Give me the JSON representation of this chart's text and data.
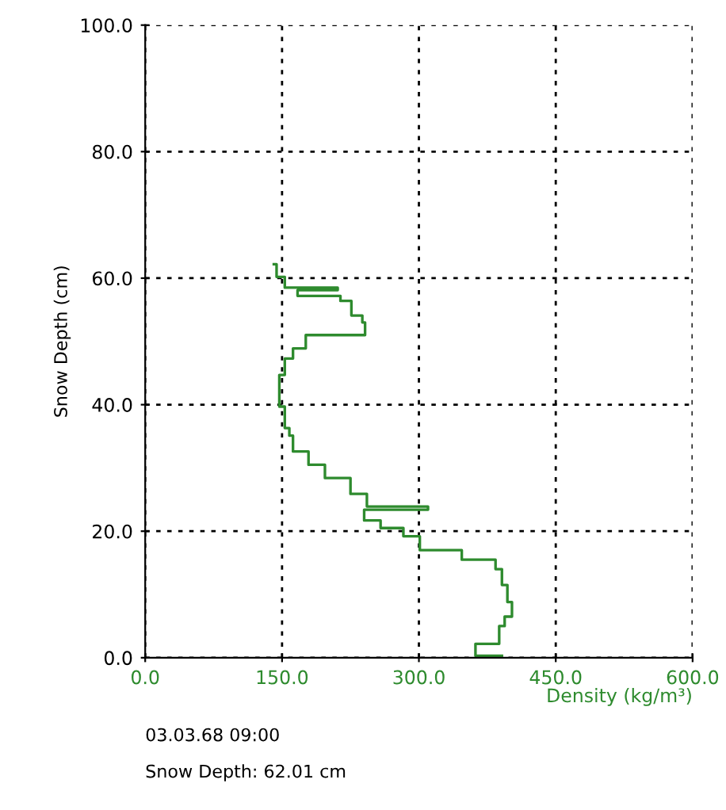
{
  "chart_data": {
    "type": "line",
    "xlabel": "Density (kg/m³)",
    "ylabel": "Snow Depth (cm)",
    "xlim": [
      0,
      600
    ],
    "xticks": [
      {
        "value": 0,
        "label": "0.0"
      },
      {
        "value": 150,
        "label": "150.0"
      },
      {
        "value": 300,
        "label": "300.0"
      },
      {
        "value": 450,
        "label": "450.0"
      },
      {
        "value": 600,
        "label": "600.0"
      }
    ],
    "ylim": [
      0,
      100
    ],
    "yticks": [
      {
        "value": 0,
        "label": "0.0"
      },
      {
        "value": 20,
        "label": "20.0"
      },
      {
        "value": 40,
        "label": "40.0"
      },
      {
        "value": 60,
        "label": "60.0"
      },
      {
        "value": 80,
        "label": "80.0"
      },
      {
        "value": 100,
        "label": "100.0"
      }
    ],
    "grid": true,
    "line_style": "solid",
    "marker": "none",
    "series": [
      {
        "color": "#2e8b2e",
        "x": [
          391,
          362,
          362,
          388,
          388,
          394,
          394,
          402,
          402,
          397,
          397,
          391,
          391,
          384,
          384,
          347,
          347,
          301,
          301,
          283,
          283,
          258,
          258,
          240,
          240,
          310,
          310,
          243,
          243,
          225,
          225,
          197,
          197,
          179,
          179,
          162,
          162,
          158,
          158,
          153,
          153,
          147,
          147,
          153,
          153,
          162,
          162,
          176,
          176,
          241,
          241,
          238,
          238,
          226,
          226,
          214,
          214,
          167,
          167,
          211,
          211,
          153,
          153,
          144,
          144,
          141
        ],
        "values": [
          0.3,
          0.3,
          2.2,
          2.2,
          5.0,
          5.0,
          6.5,
          6.5,
          8.8,
          8.8,
          11.5,
          11.5,
          14.0,
          14.0,
          15.5,
          15.5,
          17.0,
          17.0,
          19.2,
          19.2,
          20.5,
          20.5,
          21.7,
          21.7,
          23.4,
          23.4,
          23.9,
          23.9,
          25.9,
          25.9,
          28.4,
          28.4,
          30.5,
          30.5,
          32.6,
          32.6,
          35.1,
          35.1,
          36.3,
          36.3,
          39.7,
          39.7,
          44.7,
          44.7,
          47.3,
          47.3,
          48.9,
          48.9,
          51.0,
          51.0,
          53.0,
          53.0,
          54.1,
          54.1,
          56.4,
          56.4,
          57.2,
          57.2,
          58.1,
          58.1,
          58.5,
          58.5,
          60.2,
          60.2,
          62.2,
          62.2
        ]
      }
    ],
    "annotations": [
      "03.03.68 09:00",
      "Snow Depth: 62.01 cm"
    ]
  }
}
